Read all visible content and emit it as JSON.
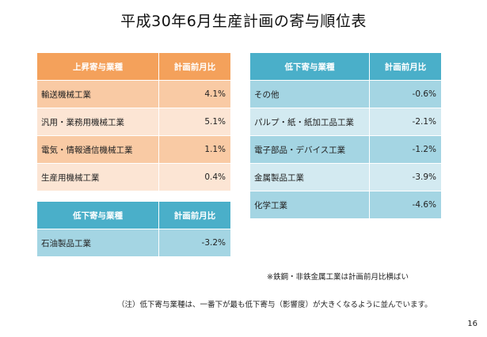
{
  "title": "平成30年6月生産計画の寄与順位表",
  "left_up_table": {
    "header": [
      "上昇寄与業種",
      "計画前月比"
    ],
    "rows": [
      {
        "name": "輸送機械工業",
        "value": "4.1%"
      },
      {
        "name": "汎用・業務用機械工業",
        "value": "5.1%"
      },
      {
        "name": "電気・情報通信機械工業",
        "value": "1.1%"
      },
      {
        "name": "生産用機械工業",
        "value": "0.4%"
      }
    ]
  },
  "left_down_table": {
    "header": [
      "低下寄与業種",
      "計画前月比"
    ],
    "rows": [
      {
        "name": "石油製品工業",
        "value": "-3.2%"
      }
    ]
  },
  "right_down_table": {
    "header": [
      "低下寄与業種",
      "計画前月比"
    ],
    "rows": [
      {
        "name": "その他",
        "value": "-0.6%"
      },
      {
        "name": "パルプ・紙・紙加工品工業",
        "value": "-2.1%"
      },
      {
        "name": "電子部品・デバイス工業",
        "value": "-1.2%"
      },
      {
        "name": "金属製品工業",
        "value": "-3.9%"
      },
      {
        "name": "化学工業",
        "value": "-4.6%"
      }
    ]
  },
  "note_steel": "※鉄鋼・非鉄金属工業は計画前月比横ばい",
  "footnote": "（注）低下寄与業種は、一番下が最も低下寄与（影響度）が大きくなるように並んでいます。",
  "page_number": "16",
  "colors": {
    "orange_header": "#f4a15b",
    "orange_row_dark": "#f9caa4",
    "orange_row_light": "#fce5d4",
    "teal_header": "#4aafc9",
    "teal_row_dark": "#a4d5e3",
    "teal_row_light": "#d3eaf1"
  }
}
